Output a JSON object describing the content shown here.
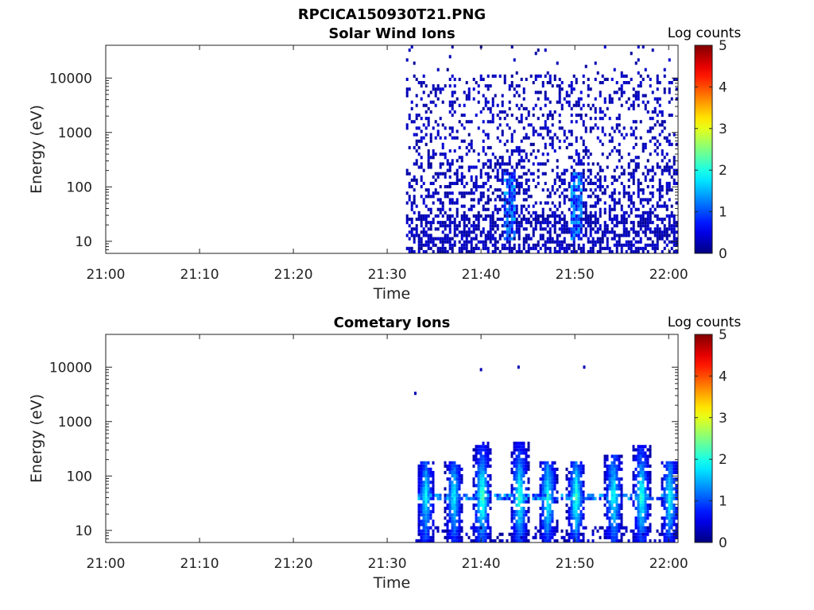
{
  "figure_title": "RPCICA150930T21.PNG",
  "colorbar": {
    "label": "Log counts",
    "ticks": [
      "0",
      "1",
      "2",
      "3",
      "4",
      "5"
    ],
    "range": [
      0,
      5
    ],
    "colormap": "jet"
  },
  "chart_data": [
    {
      "type": "heatmap",
      "title": "Solar Wind Ions",
      "xlabel": "Time",
      "ylabel": "Energy (eV)",
      "x_ticks": [
        "21:00",
        "21:10",
        "21:20",
        "21:30",
        "21:40",
        "21:50",
        "22:00"
      ],
      "y_ticks": [
        "10",
        "100",
        "1000",
        "10000"
      ],
      "y_scale": "log",
      "ylim": [
        6,
        40000
      ],
      "xlim": [
        "21:00",
        "22:01"
      ],
      "data_start": "21:32",
      "data_end": "22:01",
      "description_values": {
        "dominant_log_counts": 0.3,
        "peak_log_counts": 1.6,
        "peak_times": [
          "21:43",
          "21:50"
        ],
        "peak_energy_range_eV": [
          10,
          40
        ]
      }
    },
    {
      "type": "heatmap",
      "title": "Cometary Ions",
      "xlabel": "Time",
      "ylabel": "Energy (eV)",
      "x_ticks": [
        "21:00",
        "21:10",
        "21:20",
        "21:30",
        "21:40",
        "21:50",
        "22:00"
      ],
      "y_ticks": [
        "10",
        "100",
        "1000",
        "10000"
      ],
      "y_scale": "log",
      "ylim": [
        6,
        40000
      ],
      "xlim": [
        "21:00",
        "22:01"
      ],
      "data_start": "21:33",
      "data_end": "22:01",
      "bursts": [
        {
          "time": "21:34",
          "peak_energy_eV": 200,
          "peak_log_counts": 1.8
        },
        {
          "time": "21:37",
          "peak_energy_eV": 200,
          "peak_log_counts": 1.8
        },
        {
          "time": "21:40",
          "peak_energy_eV": 400,
          "peak_log_counts": 2.3
        },
        {
          "time": "21:44",
          "peak_energy_eV": 450,
          "peak_log_counts": 2.2
        },
        {
          "time": "21:47",
          "peak_energy_eV": 200,
          "peak_log_counts": 2.0
        },
        {
          "time": "21:50",
          "peak_energy_eV": 200,
          "peak_log_counts": 2.1
        },
        {
          "time": "21:54",
          "peak_energy_eV": 250,
          "peak_log_counts": 2.0
        },
        {
          "time": "21:57",
          "peak_energy_eV": 350,
          "peak_log_counts": 2.1
        },
        {
          "time": "22:00",
          "peak_energy_eV": 200,
          "peak_log_counts": 1.9
        }
      ],
      "band_energy_eV": 40,
      "isolated_points": [
        {
          "time": "21:33",
          "energy_eV": 3300
        },
        {
          "time": "21:40",
          "energy_eV": 9000
        },
        {
          "time": "21:44",
          "energy_eV": 10000
        },
        {
          "time": "21:51",
          "energy_eV": 10000
        }
      ]
    }
  ]
}
